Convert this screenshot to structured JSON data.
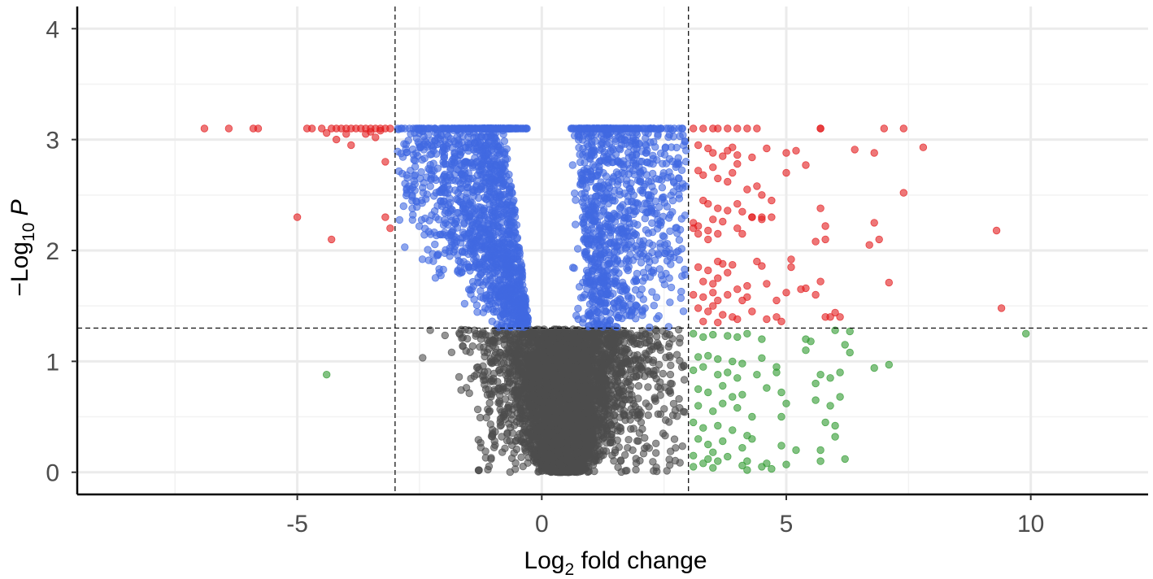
{
  "chart_data": {
    "type": "scatter",
    "title": "",
    "xlabel": {
      "prefix": "Log",
      "sub": "2",
      "suffix": " fold change"
    },
    "ylabel": {
      "prefix": "−Log",
      "sub": "10",
      "suffix": " P"
    },
    "xlim": [
      -9.5,
      12.4
    ],
    "ylim": [
      -0.2,
      4.2
    ],
    "x_ticks": [
      -5,
      0,
      5,
      10
    ],
    "x_tick_labels": [
      "-5",
      "0",
      "5",
      "10"
    ],
    "y_ticks": [
      0,
      1,
      2,
      3,
      4
    ],
    "y_tick_labels": [
      "0",
      "1",
      "2",
      "3",
      "4"
    ],
    "grid": true,
    "legend": "none",
    "thresholds": {
      "log2fc": [
        -3,
        3
      ],
      "neg_log10_p": 1.3
    },
    "colors": {
      "not_significant": "#4d4d4d",
      "fold_change_only": "#2e9a2e",
      "p_value_only": "#4169e1",
      "p_value_and_fold_change": "#e31a1c"
    },
    "series": [
      {
        "color_key": "p_value_and_fold_change",
        "x": [
          -6.9,
          -6.4,
          -5.9,
          -5.8,
          -4.8,
          -4.7,
          -4.5,
          -4.3,
          -4.2,
          -4.1,
          -4.0,
          -3.9,
          -3.8,
          -3.7,
          -3.6,
          -3.5,
          -3.4,
          -3.3,
          -3.2,
          -3.1,
          -4.4,
          -4.0,
          -3.5,
          -4.2,
          -3.9,
          -3.6,
          -3.4,
          -3.3,
          -5.0,
          -3.2,
          -3.1,
          -3.2,
          -4.3,
          3.1,
          3.3,
          3.5,
          3.6,
          3.8,
          4.0,
          4.2,
          4.4,
          5.7,
          5.7,
          7.0,
          7.4,
          3.2,
          3.4,
          3.5,
          3.7,
          3.8,
          3.9,
          4.0,
          4.3,
          4.6,
          5.0,
          5.2,
          6.4,
          6.8,
          7.8,
          3.2,
          3.3,
          3.5,
          3.6,
          3.8,
          3.9,
          4.0,
          4.2,
          4.4,
          4.5,
          4.7,
          5.0,
          5.4,
          3.3,
          3.4,
          3.6,
          3.8,
          4.0,
          4.1,
          4.3,
          4.5,
          4.7,
          7.4,
          3.1,
          3.2,
          3.4,
          3.5,
          3.7,
          4.0,
          4.1,
          4.3,
          4.5,
          5.7,
          5.8,
          6.8,
          3.1,
          3.2,
          3.4,
          3.6,
          5.6,
          5.8,
          6.7,
          6.9,
          9.3,
          3.2,
          3.4,
          3.6,
          3.7,
          3.9,
          4.4,
          4.5,
          5.1,
          3.3,
          3.5,
          3.6,
          3.8,
          4.0,
          4.2,
          4.6,
          5.1,
          5.7,
          7.1,
          3.1,
          3.3,
          3.5,
          3.6,
          3.8,
          4.1,
          4.2,
          4.8,
          5.0,
          5.3,
          5.4,
          5.6,
          3.2,
          3.4,
          3.5,
          3.7,
          3.9,
          4.3,
          4.6,
          4.8,
          5.8,
          6.0,
          9.4,
          3.3,
          3.6,
          4.0,
          4.9,
          5.9,
          6.1
        ],
        "y": [
          3.1,
          3.1,
          3.1,
          3.1,
          3.1,
          3.1,
          3.1,
          3.1,
          3.1,
          3.1,
          3.1,
          3.1,
          3.1,
          3.1,
          3.1,
          3.1,
          3.1,
          3.1,
          3.1,
          3.1,
          3.06,
          3.05,
          3.07,
          3.0,
          2.95,
          3.05,
          3.02,
          3.08,
          2.3,
          2.3,
          2.2,
          2.8,
          2.1,
          3.1,
          3.1,
          3.1,
          3.1,
          3.1,
          3.1,
          3.1,
          3.1,
          3.1,
          3.1,
          3.1,
          3.1,
          2.95,
          2.92,
          2.88,
          2.85,
          2.9,
          2.93,
          2.86,
          2.84,
          2.92,
          2.88,
          2.9,
          2.91,
          2.88,
          2.93,
          2.72,
          2.68,
          2.75,
          2.65,
          2.62,
          2.7,
          2.78,
          2.55,
          2.58,
          2.5,
          2.45,
          2.7,
          2.77,
          2.45,
          2.42,
          2.38,
          2.36,
          2.42,
          2.35,
          2.3,
          2.3,
          2.3,
          2.52,
          2.25,
          2.22,
          2.18,
          2.28,
          2.26,
          2.2,
          2.15,
          2.3,
          2.28,
          2.38,
          2.22,
          2.25,
          2.2,
          2.15,
          2.1,
          2.15,
          2.08,
          2.1,
          2.05,
          2.1,
          2.18,
          1.85,
          1.82,
          1.9,
          1.88,
          1.87,
          1.9,
          1.86,
          1.92,
          1.72,
          1.7,
          1.75,
          1.8,
          1.65,
          1.68,
          1.7,
          1.85,
          1.72,
          1.71,
          1.6,
          1.58,
          1.62,
          1.55,
          1.6,
          1.55,
          1.58,
          1.55,
          1.62,
          1.65,
          1.66,
          1.6,
          1.48,
          1.45,
          1.5,
          1.42,
          1.4,
          1.45,
          1.38,
          1.4,
          1.4,
          1.44,
          1.48,
          1.36,
          1.35,
          1.38,
          1.36,
          1.4,
          1.4
        ]
      },
      {
        "color_key": "fold_change_only",
        "x": [
          -4.4,
          3.1,
          3.3,
          3.5,
          3.8,
          4.0,
          4.2,
          4.5,
          5.4,
          5.5,
          6.0,
          6.3,
          9.9,
          3.2,
          3.4,
          3.6,
          3.9,
          4.1,
          4.5,
          4.8,
          5.4,
          6.2,
          6.3,
          3.1,
          3.3,
          3.6,
          3.8,
          4.0,
          4.4,
          4.8,
          5.7,
          6.1,
          6.8,
          7.1,
          3.2,
          3.4,
          3.7,
          3.9,
          4.1,
          4.6,
          4.9,
          5.6,
          5.9,
          3.2,
          3.5,
          3.7,
          4.0,
          4.3,
          5.0,
          5.6,
          5.9,
          6.1,
          3.1,
          3.3,
          3.6,
          3.9,
          4.2,
          4.9,
          5.8,
          6.0,
          3.2,
          3.4,
          3.7,
          4.1,
          4.3,
          4.9,
          5.2,
          6.0,
          3.1,
          3.4,
          3.5,
          3.8,
          4.2,
          4.6,
          5.7,
          6.2,
          3.1,
          3.3,
          3.5,
          3.6,
          4.1,
          4.2,
          4.5,
          4.7,
          5.0,
          5.7
        ],
        "y": [
          0.88,
          1.25,
          1.22,
          1.24,
          1.23,
          1.22,
          1.25,
          1.2,
          1.2,
          1.18,
          1.28,
          1.27,
          1.25,
          1.04,
          1.05,
          1.02,
          1.0,
          0.98,
          1.03,
          0.95,
          1.1,
          1.15,
          1.08,
          0.92,
          0.95,
          0.88,
          0.9,
          0.85,
          0.88,
          0.9,
          0.88,
          0.9,
          0.94,
          0.97,
          0.75,
          0.72,
          0.78,
          0.68,
          0.7,
          0.76,
          0.72,
          0.8,
          0.85,
          0.6,
          0.55,
          0.62,
          0.58,
          0.5,
          0.62,
          0.65,
          0.6,
          0.68,
          0.45,
          0.4,
          0.42,
          0.38,
          0.33,
          0.5,
          0.45,
          0.42,
          0.3,
          0.25,
          0.28,
          0.22,
          0.3,
          0.24,
          0.2,
          0.32,
          0.15,
          0.12,
          0.18,
          0.14,
          0.1,
          0.08,
          0.2,
          0.12,
          0.05,
          0.08,
          0.04,
          0.1,
          0.06,
          0.02,
          0.05,
          0.03,
          0.07,
          0.1
        ]
      }
    ]
  }
}
